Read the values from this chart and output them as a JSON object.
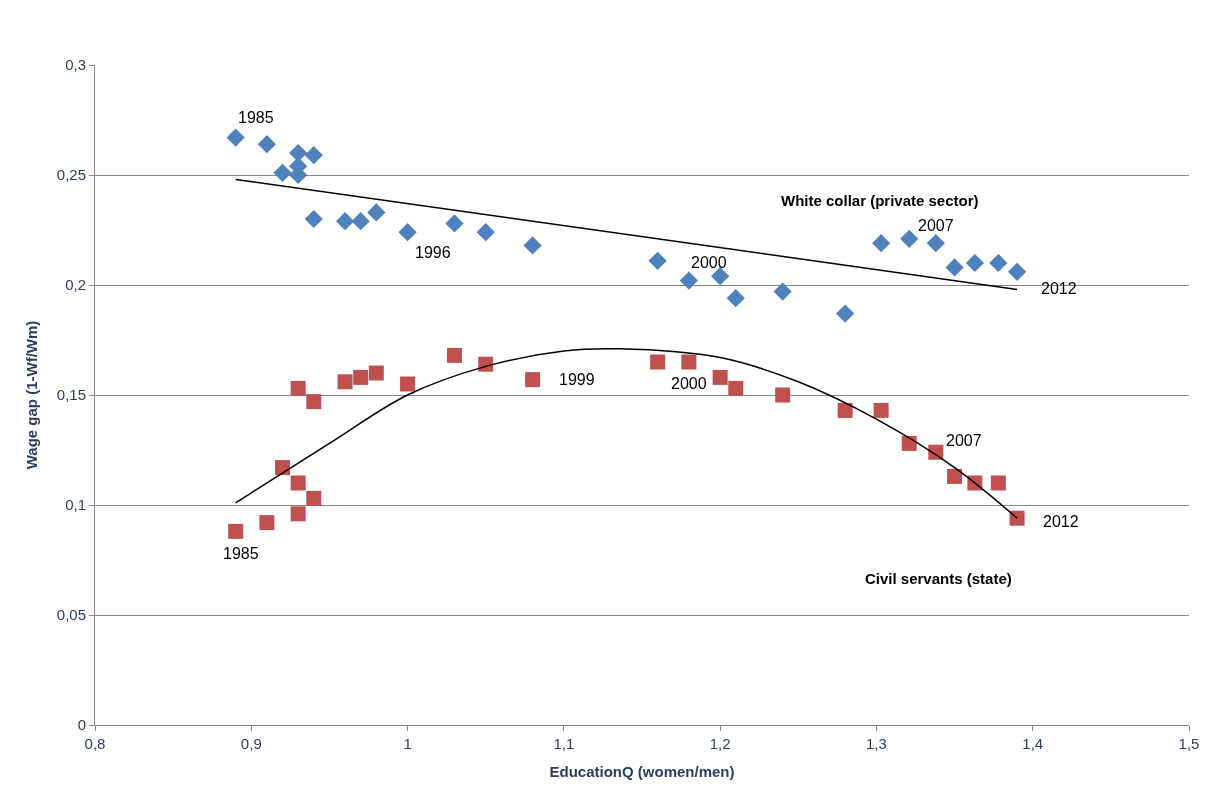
{
  "chart_data": {
    "type": "scatter",
    "xlabel": "EducationQ (women/men)",
    "ylabel": "Wage gap (1-Wf/Wm)",
    "xlim": [
      0.8,
      1.5
    ],
    "xticks": [
      {
        "value": 0.8,
        "label": "0,8"
      },
      {
        "value": 0.9,
        "label": "0,9"
      },
      {
        "value": 1,
        "label": "1"
      },
      {
        "value": 1.1,
        "label": "1,1"
      },
      {
        "value": 1.2,
        "label": "1,2"
      },
      {
        "value": 1.3,
        "label": "1,3"
      },
      {
        "value": 1.4,
        "label": "1,4"
      },
      {
        "value": 1.5,
        "label": "1,5"
      }
    ],
    "ylim": [
      0,
      0.3
    ],
    "yticks": [
      0,
      {
        "value": 0.05,
        "label": "0,05"
      },
      {
        "value": 0.1,
        "label": "0,1"
      },
      {
        "value": 0.15,
        "label": "0,15"
      },
      {
        "value": 0.2,
        "label": "0,2"
      },
      {
        "value": 0.25,
        "label": "0,25"
      },
      {
        "value": 0.3,
        "label": "0,3"
      }
    ],
    "grid": "y",
    "legend": false,
    "series": [
      {
        "marker": "diamond",
        "color": "#4f81bd",
        "x": [
          0.89,
          0.91,
          0.92,
          0.93,
          0.93,
          0.93,
          0.94,
          0.94,
          0.96,
          0.97,
          0.98,
          1.0,
          1.03,
          1.05,
          1.08,
          1.16,
          1.18,
          1.2,
          1.21,
          1.24,
          1.28,
          1.303,
          1.321,
          1.338,
          1.35,
          1.363,
          1.378,
          1.39
        ],
        "values": [
          0.267,
          0.264,
          0.251,
          0.26,
          0.254,
          0.25,
          0.259,
          0.23,
          0.229,
          0.229,
          0.233,
          0.224,
          0.228,
          0.224,
          0.218,
          0.211,
          0.202,
          0.204,
          0.194,
          0.197,
          0.187,
          0.219,
          0.221,
          0.219,
          0.208,
          0.21,
          0.21,
          0.206
        ]
      },
      {
        "marker": "square",
        "color": "#c0504d",
        "x": [
          0.89,
          0.91,
          0.92,
          0.93,
          0.93,
          0.93,
          0.94,
          0.94,
          0.96,
          0.97,
          0.98,
          1.0,
          1.03,
          1.05,
          1.08,
          1.16,
          1.18,
          1.2,
          1.21,
          1.24,
          1.28,
          1.303,
          1.321,
          1.338,
          1.35,
          1.363,
          1.378,
          1.39
        ],
        "values": [
          0.088,
          0.092,
          0.117,
          0.153,
          0.11,
          0.096,
          0.147,
          0.103,
          0.156,
          0.158,
          0.16,
          0.155,
          0.168,
          0.164,
          0.157,
          0.165,
          0.165,
          0.158,
          0.153,
          0.15,
          0.143,
          0.143,
          0.128,
          0.124,
          0.113,
          0.11,
          0.11,
          0.094
        ]
      },
      {
        "type": "line",
        "marker": "none",
        "color": "#000000",
        "x": [
          0.89,
          1.39
        ],
        "values": [
          0.248,
          0.198
        ]
      },
      {
        "type": "line",
        "marker": "none",
        "color": "#000000",
        "x": [
          0.89,
          0.95,
          1.0,
          1.05,
          1.1,
          1.135,
          1.2,
          1.25,
          1.3,
          1.35,
          1.39
        ],
        "values": [
          0.101,
          0.128,
          0.15,
          0.163,
          0.17,
          0.171,
          0.167,
          0.156,
          0.139,
          0.117,
          0.094
        ]
      }
    ],
    "annotations": [
      {
        "text": "1985",
        "x": 0.89,
        "y": 0.267
      },
      {
        "text": "1996",
        "x": 1.0,
        "y": 0.224
      },
      {
        "text": "2000",
        "x": 1.18,
        "y": 0.202
      },
      {
        "text": "2007",
        "x": 1.338,
        "y": 0.219
      },
      {
        "text": "2012",
        "x": 1.39,
        "y": 0.206
      },
      {
        "text": "1985",
        "x": 0.89,
        "y": 0.088
      },
      {
        "text": "1999",
        "x": 1.08,
        "y": 0.157
      },
      {
        "text": "2000",
        "x": 1.18,
        "y": 0.165
      },
      {
        "text": "2007",
        "x": 1.338,
        "y": 0.124
      },
      {
        "text": "2012",
        "x": 1.39,
        "y": 0.094
      },
      "White collar (private sector)",
      "Civil servants (state)"
    ]
  }
}
